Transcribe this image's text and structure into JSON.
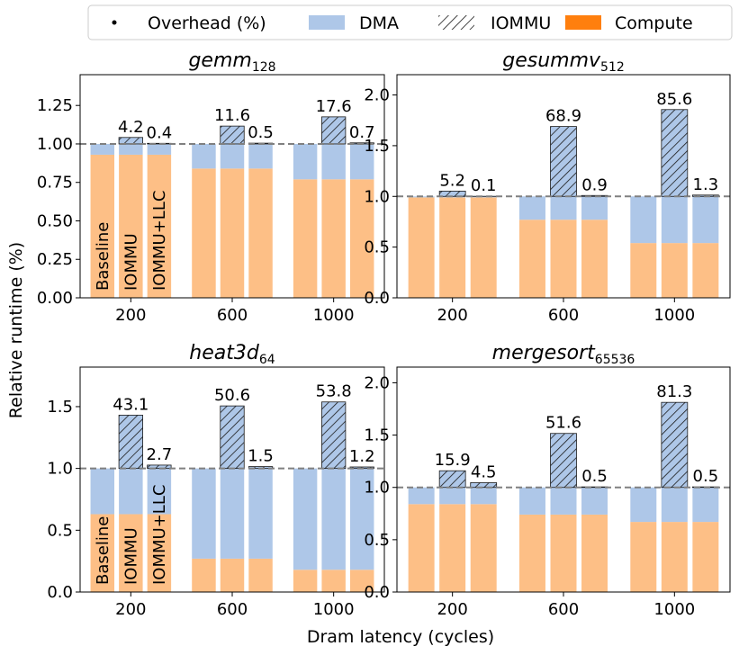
{
  "figure": {
    "ylabel": "Relative runtime (%)",
    "xlabel": "Dram latency (cycles)"
  },
  "legend": {
    "items": [
      {
        "label": "Overhead (%)",
        "kind": "dot"
      },
      {
        "label": "DMA",
        "kind": "dma"
      },
      {
        "label": "IOMMU",
        "kind": "iommu"
      },
      {
        "label": "Compute",
        "kind": "compute"
      }
    ]
  },
  "colors": {
    "compute": "#fdbf86",
    "dma": "#aec7e8",
    "iommu_fill": "#aec7e8",
    "iommu_hatch": "#1a1a1a",
    "compute_legend": "#ff7f0e",
    "reference_line": "#808080"
  },
  "chart_data": [
    {
      "type": "bar",
      "title": "gemm",
      "title_sub": "128",
      "xlabel": "Dram latency (cycles)",
      "ylabel": "Relative runtime (%)",
      "categories": [
        "200",
        "600",
        "1000"
      ],
      "bar_labels": [
        "Baseline",
        "IOMMU",
        "IOMMU+LLC"
      ],
      "ylim": [
        0,
        1.45
      ],
      "yticks": [
        0.0,
        0.25,
        0.5,
        0.75,
        1.0,
        1.25
      ],
      "ytick_labels": [
        "0.00",
        "0.25",
        "0.50",
        "0.75",
        "1.00",
        "1.25"
      ],
      "reference_line": 1.0,
      "series": [
        {
          "name": "Compute",
          "values": [
            [
              0.93,
              0.93,
              0.93
            ],
            [
              0.84,
              0.84,
              0.84
            ],
            [
              0.77,
              0.77,
              0.77
            ]
          ]
        },
        {
          "name": "DMA",
          "values": [
            [
              0.07,
              0.07,
              0.07
            ],
            [
              0.16,
              0.16,
              0.16
            ],
            [
              0.23,
              0.23,
              0.23
            ]
          ]
        },
        {
          "name": "IOMMU",
          "values": [
            [
              0.0,
              0.042,
              0.004
            ],
            [
              0.0,
              0.116,
              0.005
            ],
            [
              0.0,
              0.176,
              0.007
            ]
          ]
        }
      ],
      "overhead_labels": [
        [
          "",
          "4.2",
          "0.4"
        ],
        [
          "",
          "11.6",
          "0.5"
        ],
        [
          "",
          "17.6",
          "0.7"
        ]
      ],
      "show_bar_labels": true
    },
    {
      "type": "bar",
      "title": "gesummv",
      "title_sub": "512",
      "xlabel": "Dram latency (cycles)",
      "ylabel": "Relative runtime (%)",
      "categories": [
        "200",
        "600",
        "1000"
      ],
      "bar_labels": [
        "Baseline",
        "IOMMU",
        "IOMMU+LLC"
      ],
      "ylim": [
        0,
        2.2
      ],
      "yticks": [
        0.0,
        0.5,
        1.0,
        1.5,
        2.0
      ],
      "ytick_labels": [
        "0.0",
        "0.5",
        "1.0",
        "1.5",
        "2.0"
      ],
      "reference_line": 1.0,
      "series": [
        {
          "name": "Compute",
          "values": [
            [
              0.99,
              0.99,
              0.99
            ],
            [
              0.77,
              0.77,
              0.77
            ],
            [
              0.54,
              0.54,
              0.54
            ]
          ]
        },
        {
          "name": "DMA",
          "values": [
            [
              0.01,
              0.01,
              0.01
            ],
            [
              0.23,
              0.23,
              0.23
            ],
            [
              0.46,
              0.46,
              0.46
            ]
          ]
        },
        {
          "name": "IOMMU",
          "values": [
            [
              0.0,
              0.052,
              0.001
            ],
            [
              0.0,
              0.689,
              0.009
            ],
            [
              0.0,
              0.856,
              0.013
            ]
          ]
        }
      ],
      "overhead_labels": [
        [
          "",
          "5.2",
          "0.1"
        ],
        [
          "",
          "68.9",
          "0.9"
        ],
        [
          "",
          "85.6",
          "1.3"
        ]
      ],
      "show_bar_labels": false
    },
    {
      "type": "bar",
      "title": "heat3d",
      "title_sub": "64",
      "xlabel": "Dram latency (cycles)",
      "ylabel": "Relative runtime (%)",
      "categories": [
        "200",
        "600",
        "1000"
      ],
      "bar_labels": [
        "Baseline",
        "IOMMU",
        "IOMMU+LLC"
      ],
      "ylim": [
        0,
        1.82
      ],
      "yticks": [
        0.0,
        0.5,
        1.0,
        1.5
      ],
      "ytick_labels": [
        "0.0",
        "0.5",
        "1.0",
        "1.5"
      ],
      "reference_line": 1.0,
      "series": [
        {
          "name": "Compute",
          "values": [
            [
              0.63,
              0.63,
              0.63
            ],
            [
              0.27,
              0.27,
              0.27
            ],
            [
              0.18,
              0.18,
              0.18
            ]
          ]
        },
        {
          "name": "DMA",
          "values": [
            [
              0.37,
              0.37,
              0.37
            ],
            [
              0.73,
              0.73,
              0.73
            ],
            [
              0.82,
              0.82,
              0.82
            ]
          ]
        },
        {
          "name": "IOMMU",
          "values": [
            [
              0.0,
              0.431,
              0.027
            ],
            [
              0.0,
              0.506,
              0.015
            ],
            [
              0.0,
              0.538,
              0.012
            ]
          ]
        }
      ],
      "overhead_labels": [
        [
          "",
          "43.1",
          "2.7"
        ],
        [
          "",
          "50.6",
          "1.5"
        ],
        [
          "",
          "53.8",
          "1.2"
        ]
      ],
      "show_bar_labels": true
    },
    {
      "type": "bar",
      "title": "mergesort",
      "title_sub": "65536",
      "xlabel": "Dram latency (cycles)",
      "ylabel": "Relative runtime (%)",
      "categories": [
        "200",
        "600",
        "1000"
      ],
      "bar_labels": [
        "Baseline",
        "IOMMU",
        "IOMMU+LLC"
      ],
      "ylim": [
        0,
        2.15
      ],
      "yticks": [
        0.0,
        0.5,
        1.0,
        1.5,
        2.0
      ],
      "ytick_labels": [
        "0.0",
        "0.5",
        "1.0",
        "1.5",
        "2.0"
      ],
      "reference_line": 1.0,
      "series": [
        {
          "name": "Compute",
          "values": [
            [
              0.84,
              0.84,
              0.84
            ],
            [
              0.74,
              0.74,
              0.74
            ],
            [
              0.67,
              0.67,
              0.67
            ]
          ]
        },
        {
          "name": "DMA",
          "values": [
            [
              0.16,
              0.16,
              0.16
            ],
            [
              0.26,
              0.26,
              0.26
            ],
            [
              0.33,
              0.33,
              0.33
            ]
          ]
        },
        {
          "name": "IOMMU",
          "values": [
            [
              0.0,
              0.159,
              0.045
            ],
            [
              0.0,
              0.516,
              0.005
            ],
            [
              0.0,
              0.813,
              0.005
            ]
          ]
        }
      ],
      "overhead_labels": [
        [
          "",
          "15.9",
          "4.5"
        ],
        [
          "",
          "51.6",
          "0.5"
        ],
        [
          "",
          "81.3",
          "0.5"
        ]
      ],
      "show_bar_labels": false
    }
  ]
}
